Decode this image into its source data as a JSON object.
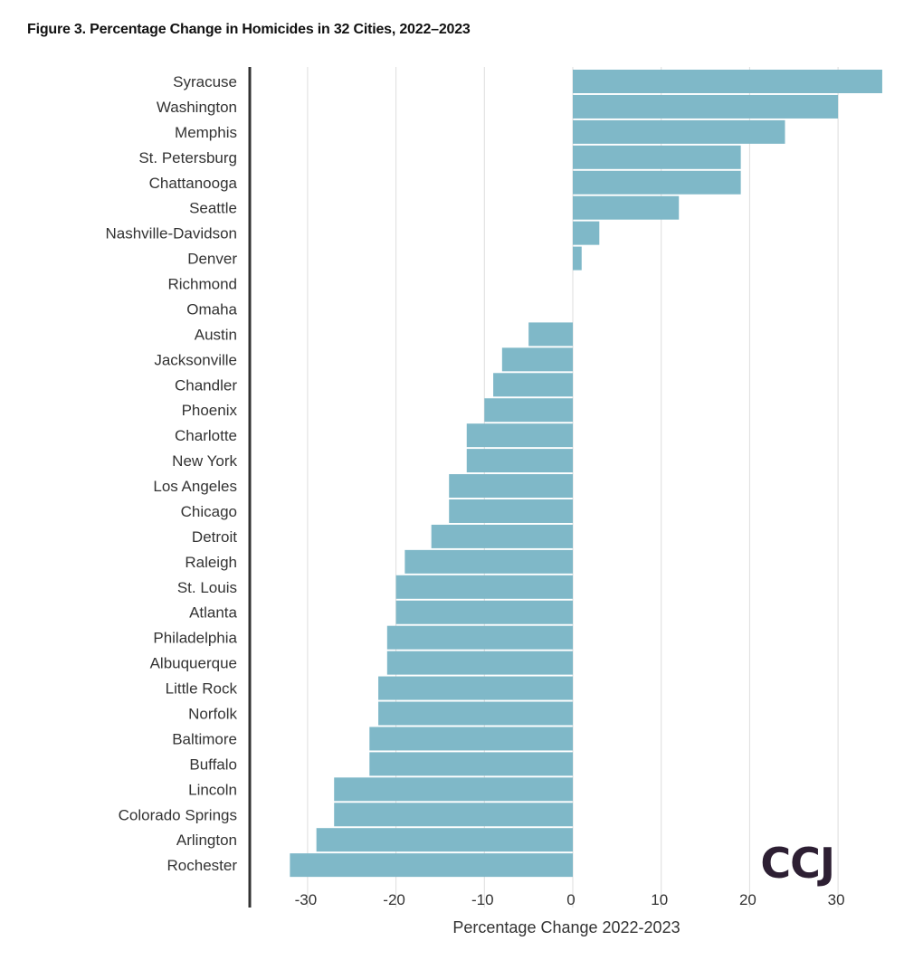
{
  "page": {
    "title": "Figure 3. Percentage Change in Homicides in 32 Cities, 2022–2023",
    "logo_text": "CCJ"
  },
  "colors": {
    "bar": "#7fb8c8",
    "grid": "#dddddd",
    "axis": "#333333",
    "text": "#333333",
    "logo": "#2d1f33"
  },
  "chart_data": {
    "type": "bar",
    "orientation": "horizontal",
    "title": "Figure 3. Percentage Change in Homicides in 32 Cities, 2022–2023",
    "xlabel": "Percentage Change 2022-2023",
    "ylabel": "",
    "xlim": [
      -32,
      35
    ],
    "xticks": [
      -30,
      -20,
      -10,
      0,
      10,
      20,
      30
    ],
    "xtick_labels": [
      "-30",
      "-20",
      "-10",
      "0",
      "10",
      "20",
      "30"
    ],
    "grid": true,
    "categories": [
      "Syracuse",
      "Washington",
      "Memphis",
      "St. Petersburg",
      "Chattanooga",
      "Seattle",
      "Nashville-Davidson",
      "Denver",
      "Richmond",
      "Omaha",
      "Austin",
      "Jacksonville",
      "Chandler",
      "Phoenix",
      "Charlotte",
      "New York",
      "Los Angeles",
      "Chicago",
      "Detroit",
      "Raleigh",
      "St. Louis",
      "Atlanta",
      "Philadelphia",
      "Albuquerque",
      "Little Rock",
      "Norfolk",
      "Baltimore",
      "Buffalo",
      "Lincoln",
      "Colorado Springs",
      "Arlington",
      "Rochester"
    ],
    "values": [
      35,
      30,
      24,
      19,
      19,
      12,
      3,
      1,
      0,
      0,
      -5,
      -8,
      -9,
      -10,
      -12,
      -12,
      -14,
      -14,
      -16,
      -19,
      -20,
      -20,
      -21,
      -21,
      -22,
      -22,
      -23,
      -23,
      -27,
      -27,
      -29,
      -32
    ]
  }
}
